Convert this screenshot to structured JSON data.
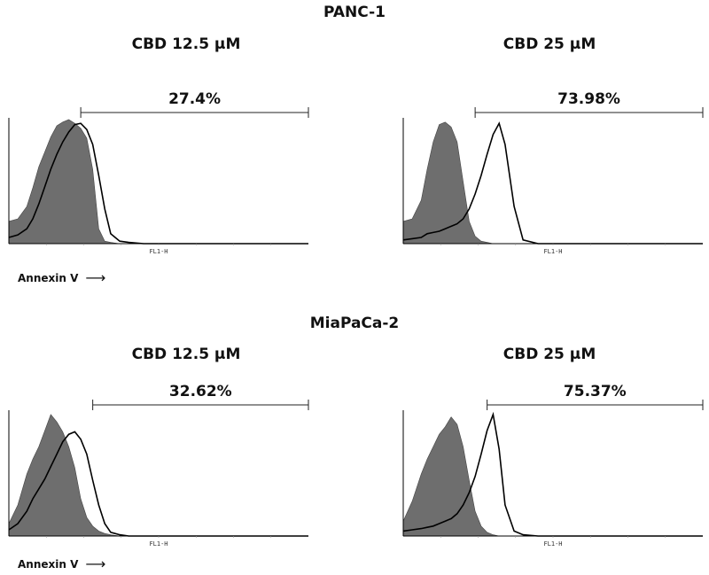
{
  "figure": {
    "groups": [
      {
        "label": "PANC-1",
        "axis_note": "Annexin V",
        "arrow": "⟶"
      },
      {
        "label": "MiaPaCa-2",
        "axis_note": "Annexin V",
        "arrow": "⟶"
      }
    ]
  },
  "colors": {
    "control_fill": "#6e6e6e",
    "treated_line": "#000000",
    "axis": "#000000"
  },
  "chart_data": [
    {
      "type": "area",
      "title": "CBD 12.5 µM",
      "group": "PANC-1",
      "xlabel": "FL1-H",
      "gate_label": "27.4%",
      "gate_range": [
        0.24,
        1.0
      ],
      "xlim": [
        0,
        1
      ],
      "ylim": [
        0,
        1
      ],
      "x": [
        0,
        0.03,
        0.06,
        0.08,
        0.1,
        0.12,
        0.14,
        0.16,
        0.18,
        0.2,
        0.22,
        0.24,
        0.26,
        0.28,
        0.3,
        0.32,
        0.34,
        0.37,
        0.4,
        0.45,
        0.5,
        1.0
      ],
      "series": [
        {
          "values": [
            0.18,
            0.2,
            0.3,
            0.45,
            0.62,
            0.74,
            0.86,
            0.95,
            0.98,
            1.0,
            0.97,
            0.93,
            0.85,
            0.6,
            0.12,
            0.02,
            0.01,
            0,
            0,
            0,
            0,
            0
          ]
        },
        {
          "values": [
            0.05,
            0.07,
            0.12,
            0.2,
            0.32,
            0.46,
            0.6,
            0.72,
            0.82,
            0.9,
            0.96,
            0.97,
            0.92,
            0.8,
            0.55,
            0.28,
            0.08,
            0.02,
            0.01,
            0,
            0,
            0
          ]
        }
      ]
    },
    {
      "type": "area",
      "title": "CBD 25 µM",
      "group": "PANC-1",
      "xlabel": "FL1-H",
      "gate_label": "73.98%",
      "gate_range": [
        0.24,
        1.0
      ],
      "xlim": [
        0,
        1
      ],
      "ylim": [
        0,
        1
      ],
      "x": [
        0,
        0.03,
        0.06,
        0.08,
        0.1,
        0.12,
        0.14,
        0.16,
        0.18,
        0.2,
        0.22,
        0.24,
        0.26,
        0.28,
        0.3,
        0.32,
        0.34,
        0.37,
        0.4,
        0.45,
        0.5,
        1.0
      ],
      "series": [
        {
          "values": [
            0.18,
            0.2,
            0.35,
            0.6,
            0.82,
            0.96,
            0.98,
            0.94,
            0.82,
            0.5,
            0.18,
            0.06,
            0.02,
            0.01,
            0,
            0,
            0,
            0,
            0,
            0,
            0,
            0
          ]
        },
        {
          "values": [
            0.03,
            0.04,
            0.05,
            0.08,
            0.09,
            0.1,
            0.12,
            0.14,
            0.16,
            0.2,
            0.28,
            0.4,
            0.55,
            0.72,
            0.88,
            0.97,
            0.8,
            0.3,
            0.03,
            0,
            0,
            0
          ]
        }
      ]
    },
    {
      "type": "area",
      "title": "CBD 12.5 µM",
      "group": "MiaPaCa-2",
      "xlabel": "FL1-H",
      "gate_label": "32.62%",
      "gate_range": [
        0.28,
        1.0
      ],
      "xlim": [
        0,
        1
      ],
      "ylim": [
        0,
        1
      ],
      "x": [
        0,
        0.03,
        0.06,
        0.08,
        0.1,
        0.12,
        0.14,
        0.16,
        0.18,
        0.2,
        0.22,
        0.24,
        0.26,
        0.28,
        0.3,
        0.32,
        0.34,
        0.37,
        0.4,
        0.45,
        0.5,
        1.0
      ],
      "series": [
        {
          "values": [
            0.1,
            0.25,
            0.5,
            0.62,
            0.72,
            0.85,
            0.98,
            0.92,
            0.84,
            0.72,
            0.55,
            0.3,
            0.15,
            0.08,
            0.04,
            0.02,
            0.01,
            0,
            0,
            0,
            0,
            0
          ]
        },
        {
          "values": [
            0.05,
            0.1,
            0.2,
            0.3,
            0.38,
            0.46,
            0.56,
            0.66,
            0.76,
            0.82,
            0.84,
            0.78,
            0.66,
            0.45,
            0.25,
            0.1,
            0.03,
            0.01,
            0,
            0,
            0,
            0
          ]
        }
      ]
    },
    {
      "type": "area",
      "title": "CBD 25 µM",
      "group": "MiaPaCa-2",
      "xlabel": "FL1-H",
      "gate_label": "75.37%",
      "gate_range": [
        0.28,
        1.0
      ],
      "xlim": [
        0,
        1
      ],
      "ylim": [
        0,
        1
      ],
      "x": [
        0,
        0.03,
        0.06,
        0.08,
        0.1,
        0.12,
        0.14,
        0.16,
        0.18,
        0.2,
        0.22,
        0.24,
        0.26,
        0.28,
        0.3,
        0.32,
        0.34,
        0.37,
        0.4,
        0.45,
        0.5,
        1.0
      ],
      "series": [
        {
          "values": [
            0.12,
            0.28,
            0.5,
            0.62,
            0.72,
            0.82,
            0.88,
            0.96,
            0.9,
            0.72,
            0.45,
            0.2,
            0.08,
            0.03,
            0.01,
            0,
            0,
            0,
            0,
            0,
            0,
            0
          ]
        },
        {
          "values": [
            0.04,
            0.05,
            0.06,
            0.07,
            0.08,
            0.1,
            0.12,
            0.14,
            0.18,
            0.25,
            0.35,
            0.48,
            0.66,
            0.85,
            0.98,
            0.7,
            0.25,
            0.04,
            0.01,
            0,
            0,
            0
          ]
        }
      ]
    }
  ]
}
